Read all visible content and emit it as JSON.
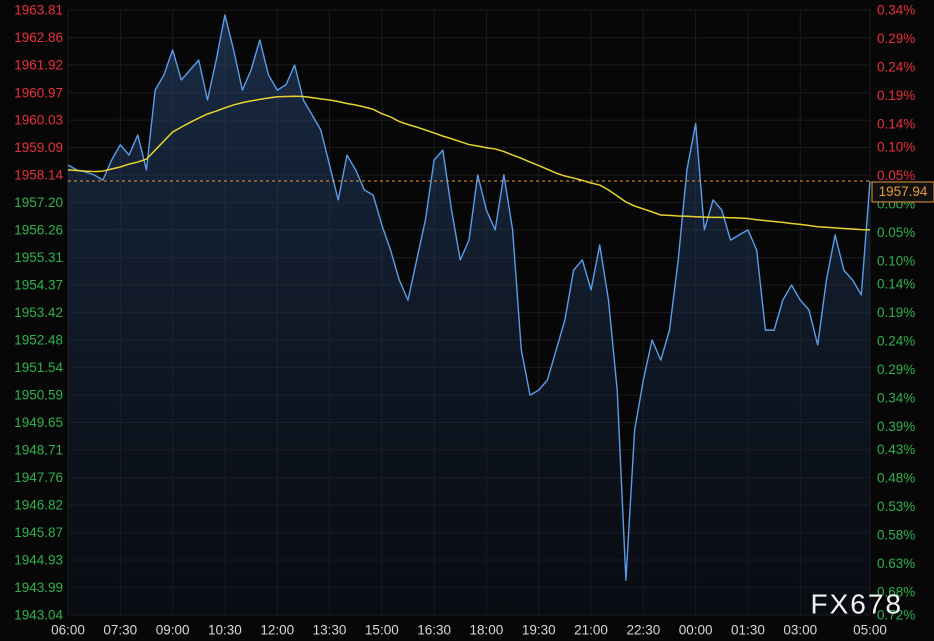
{
  "chart_data": {
    "type": "line",
    "watermark": "FX678",
    "categories": [
      "06:00",
      "06:15",
      "06:30",
      "06:45",
      "07:00",
      "07:15",
      "07:30",
      "07:45",
      "08:00",
      "08:15",
      "08:30",
      "08:45",
      "09:00",
      "09:15",
      "09:30",
      "09:45",
      "10:00",
      "10:15",
      "10:30",
      "10:45",
      "11:00",
      "11:15",
      "11:30",
      "11:45",
      "12:00",
      "12:15",
      "12:30",
      "12:45",
      "13:00",
      "13:15",
      "13:30",
      "13:45",
      "14:00",
      "14:15",
      "14:30",
      "14:45",
      "15:00",
      "15:15",
      "15:30",
      "15:45",
      "16:00",
      "16:15",
      "16:30",
      "16:45",
      "17:00",
      "17:15",
      "17:30",
      "17:45",
      "18:00",
      "18:15",
      "18:30",
      "18:45",
      "19:00",
      "19:15",
      "19:30",
      "19:45",
      "20:00",
      "20:15",
      "20:30",
      "20:45",
      "21:00",
      "21:15",
      "21:30",
      "21:45",
      "22:00",
      "22:15",
      "22:30",
      "22:45",
      "23:00",
      "23:15",
      "23:30",
      "23:45",
      "00:00",
      "00:15",
      "00:30",
      "00:45",
      "01:00",
      "01:15",
      "01:30",
      "01:45",
      "02:00",
      "02:15",
      "02:30",
      "02:45",
      "03:00",
      "03:15",
      "03:30",
      "03:45",
      "04:00",
      "04:15",
      "04:30",
      "04:45",
      "05:00"
    ],
    "xticks": [
      "06:00",
      "07:30",
      "09:00",
      "10:30",
      "12:00",
      "13:30",
      "15:00",
      "16:30",
      "18:00",
      "19:30",
      "21:00",
      "22:30",
      "00:00",
      "01:30",
      "03:00",
      "05:00"
    ],
    "series": [
      {
        "color": "#5b9ce8",
        "values": [
          1958.49,
          1958.32,
          1958.25,
          1958.15,
          1957.97,
          1958.66,
          1959.18,
          1958.83,
          1959.52,
          1958.32,
          1961.06,
          1961.58,
          1962.44,
          1961.41,
          1961.75,
          1962.09,
          1960.72,
          1962.09,
          1963.64,
          1962.44,
          1961.06,
          1961.75,
          1962.78,
          1961.58,
          1961.06,
          1961.24,
          1961.92,
          1960.72,
          1960.21,
          1959.69,
          1958.49,
          1957.29,
          1958.83,
          1958.32,
          1957.63,
          1957.46,
          1956.43,
          1955.57,
          1954.54,
          1953.85,
          1955.23,
          1956.6,
          1958.66,
          1959.0,
          1956.94,
          1955.23,
          1955.91,
          1958.15,
          1956.94,
          1956.26,
          1958.15,
          1956.26,
          1952.14,
          1950.59,
          1950.76,
          1951.11,
          1952.14,
          1953.17,
          1954.88,
          1955.23,
          1954.2,
          1955.74,
          1953.85,
          1950.76,
          1944.24,
          1949.39,
          1951.11,
          1952.48,
          1951.79,
          1952.82,
          1955.23,
          1958.32,
          1959.91,
          1956.26,
          1957.29,
          1956.94,
          1955.91,
          1956.09,
          1956.26,
          1955.57,
          1952.82,
          1952.82,
          1953.85,
          1954.37,
          1953.85,
          1953.51,
          1952.31,
          1954.54,
          1956.09,
          1954.88,
          1954.54,
          1954.03,
          1957.94
        ]
      },
      {
        "color": "#e6d52e",
        "values": [
          1958.32,
          1958.3,
          1958.28,
          1958.26,
          1958.28,
          1958.35,
          1958.42,
          1958.52,
          1958.59,
          1958.69,
          1959.0,
          1959.31,
          1959.62,
          1959.79,
          1959.95,
          1960.1,
          1960.24,
          1960.34,
          1960.45,
          1960.55,
          1960.63,
          1960.69,
          1960.74,
          1960.79,
          1960.83,
          1960.84,
          1960.85,
          1960.84,
          1960.8,
          1960.76,
          1960.72,
          1960.67,
          1960.6,
          1960.55,
          1960.48,
          1960.4,
          1960.25,
          1960.14,
          1959.98,
          1959.88,
          1959.79,
          1959.69,
          1959.59,
          1959.48,
          1959.39,
          1959.29,
          1959.19,
          1959.14,
          1959.08,
          1959.04,
          1958.95,
          1958.83,
          1958.72,
          1958.59,
          1958.47,
          1958.34,
          1958.21,
          1958.11,
          1958.04,
          1957.96,
          1957.87,
          1957.8,
          1957.63,
          1957.43,
          1957.22,
          1957.08,
          1956.98,
          1956.88,
          1956.77,
          1956.76,
          1956.74,
          1956.73,
          1956.71,
          1956.7,
          1956.69,
          1956.69,
          1956.68,
          1956.67,
          1956.65,
          1956.61,
          1956.58,
          1956.55,
          1956.52,
          1956.48,
          1956.45,
          1956.41,
          1956.37,
          1956.35,
          1956.33,
          1956.31,
          1956.29,
          1956.27,
          1956.26
        ]
      }
    ],
    "ylim": [
      1943.04,
      1963.81
    ],
    "yticks": [
      1963.81,
      1962.86,
      1961.92,
      1960.97,
      1960.03,
      1959.09,
      1958.14,
      {
        "value": 1957.2,
        "label": "1957.20"
      },
      1956.26,
      1955.31,
      1954.37,
      1953.42,
      1952.48,
      1951.54,
      1950.59,
      1949.65,
      1948.71,
      1947.76,
      1946.82,
      1945.87,
      1944.93,
      1943.99,
      1943.04
    ],
    "y2lim": [
      -0.72,
      0.34
    ],
    "y2ticks": [
      {
        "value": 0.34,
        "label": "0.34%"
      },
      {
        "value": 0.29,
        "label": "0.29%"
      },
      {
        "value": 0.24,
        "label": "0.24%"
      },
      {
        "value": 0.19,
        "label": "0.19%"
      },
      {
        "value": 0.14,
        "label": "0.14%"
      },
      {
        "value": 0.1,
        "label": "0.10%"
      },
      {
        "value": 0.05,
        "label": "0.05%"
      },
      {
        "value": 0,
        "label": "0.00%"
      },
      {
        "value": -0.05,
        "label": "0.05%"
      },
      {
        "value": -0.1,
        "label": "0.10%"
      },
      {
        "value": -0.14,
        "label": "0.14%"
      },
      {
        "value": -0.19,
        "label": "0.19%"
      },
      {
        "value": -0.24,
        "label": "0.24%"
      },
      {
        "value": -0.29,
        "label": "0.29%"
      },
      {
        "value": -0.34,
        "label": "0.34%"
      },
      {
        "value": -0.39,
        "label": "0.39%"
      },
      {
        "value": -0.43,
        "label": "0.43%"
      },
      {
        "value": -0.48,
        "label": "0.48%"
      },
      {
        "value": -0.53,
        "label": "0.53%"
      },
      {
        "value": -0.58,
        "label": "0.58%"
      },
      {
        "value": -0.63,
        "label": "0.63%"
      },
      {
        "value": -0.68,
        "label": "0.68%"
      },
      {
        "value": -0.72,
        "label": "0.72%"
      }
    ],
    "grid": true,
    "up_color": "#e8303c",
    "down_color": "#2fb24c",
    "last_color": "#e89a3c"
  }
}
